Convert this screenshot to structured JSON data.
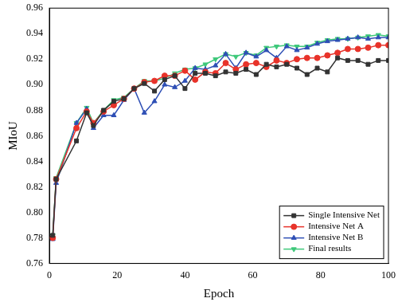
{
  "chart_data": {
    "type": "line",
    "x_label": "Epoch",
    "y_label": "MIoU",
    "x": [
      1,
      2,
      8,
      11,
      13,
      16,
      19,
      22,
      25,
      28,
      31,
      34,
      37,
      40,
      43,
      46,
      49,
      52,
      55,
      58,
      61,
      64,
      67,
      70,
      73,
      76,
      79,
      82,
      85,
      88,
      91,
      94,
      97,
      100
    ],
    "series": [
      {
        "name": "Single Intensive Net",
        "color": "#333333",
        "marker": "square",
        "values": [
          0.782,
          0.826,
          0.856,
          0.878,
          0.868,
          0.88,
          0.887,
          0.889,
          0.897,
          0.901,
          0.895,
          0.904,
          0.907,
          0.897,
          0.909,
          0.909,
          0.907,
          0.91,
          0.909,
          0.912,
          0.908,
          0.916,
          0.914,
          0.916,
          0.913,
          0.908,
          0.913,
          0.91,
          0.921,
          0.919,
          0.919,
          0.916,
          0.919,
          0.919
        ]
      },
      {
        "name": "Intensive Net A",
        "color": "#e8332a",
        "marker": "circle",
        "values": [
          0.78,
          0.826,
          0.866,
          0.879,
          0.87,
          0.879,
          0.884,
          0.889,
          0.897,
          0.902,
          0.903,
          0.907,
          0.907,
          0.911,
          0.904,
          0.91,
          0.909,
          0.917,
          0.912,
          0.916,
          0.917,
          0.914,
          0.919,
          0.917,
          0.92,
          0.921,
          0.921,
          0.923,
          0.925,
          0.928,
          0.928,
          0.929,
          0.931,
          0.931
        ]
      },
      {
        "name": "Intensive Net B",
        "color": "#2e4fb5",
        "marker": "triangle_up",
        "values": [
          0.779,
          0.823,
          0.87,
          0.881,
          0.866,
          0.876,
          0.876,
          0.888,
          0.897,
          0.878,
          0.887,
          0.9,
          0.898,
          0.903,
          0.913,
          0.912,
          0.915,
          0.924,
          0.913,
          0.925,
          0.922,
          0.927,
          0.921,
          0.93,
          0.927,
          0.929,
          0.932,
          0.934,
          0.935,
          0.936,
          0.937,
          0.936,
          0.937,
          0.937
        ]
      },
      {
        "name": "Final results",
        "color": "#3ec87a",
        "marker": "triangle_down",
        "values": [
          0.782,
          0.827,
          0.87,
          0.882,
          0.87,
          0.88,
          0.888,
          0.89,
          0.897,
          0.903,
          0.903,
          0.905,
          0.909,
          0.912,
          0.913,
          0.916,
          0.92,
          0.924,
          0.922,
          0.925,
          0.923,
          0.929,
          0.93,
          0.931,
          0.93,
          0.93,
          0.933,
          0.935,
          0.936,
          0.936,
          0.937,
          0.938,
          0.939,
          0.938
        ]
      }
    ],
    "xlim": [
      0,
      100
    ],
    "xticks": [
      0,
      20,
      40,
      60,
      80,
      100
    ],
    "ylim": [
      0.76,
      0.96
    ],
    "yticks": [
      0.76,
      0.78,
      {
        "value": 0.8,
        "label": "0.80"
      },
      0.82,
      0.84,
      0.86,
      0.88,
      {
        "value": 0.9,
        "label": "0.90"
      },
      0.92,
      0.94,
      0.96
    ],
    "grid": false,
    "legend": "bottom-right"
  }
}
